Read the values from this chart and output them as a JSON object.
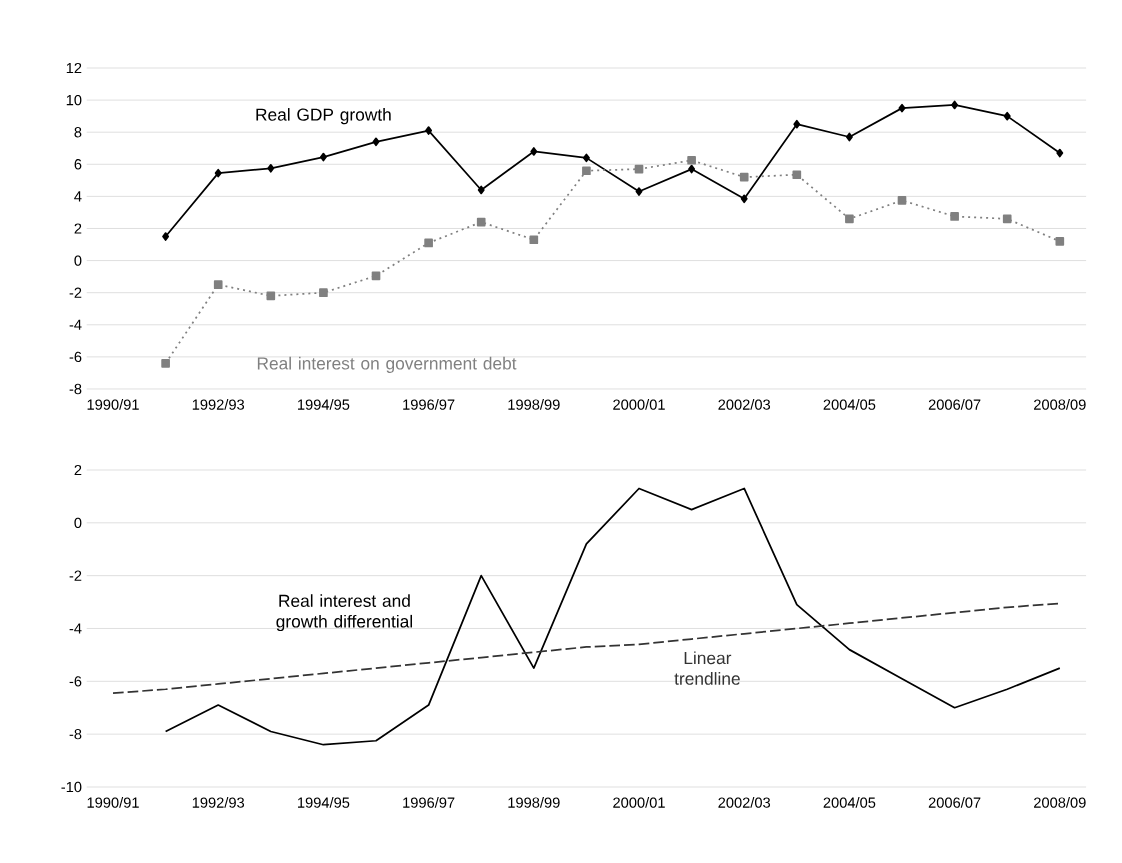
{
  "chart_data": [
    {
      "type": "line",
      "categories": [
        "1990/91",
        null,
        "1992/93",
        null,
        "1994/95",
        null,
        "1996/97",
        null,
        "1998/99",
        null,
        "2000/01",
        null,
        "2002/03",
        null,
        "2004/05",
        null,
        "2006/07",
        null,
        "2008/09"
      ],
      "ylim": [
        -8,
        12
      ],
      "yticks": [
        -8,
        -6,
        -4,
        -2,
        0,
        2,
        4,
        6,
        8,
        10,
        12
      ],
      "grid": "y",
      "legend": false,
      "series": [
        {
          "name": "Real GDP growth",
          "color": "#000000",
          "marker": "diamond",
          "line_style": "solid",
          "values": [
            null,
            1.5,
            5.45,
            5.75,
            6.45,
            7.4,
            8.1,
            4.4,
            6.8,
            6.4,
            4.3,
            5.7,
            3.85,
            8.5,
            7.7,
            9.5,
            9.7,
            9.0,
            6.7
          ]
        },
        {
          "name": "Real interest on government debt",
          "color": "#808080",
          "marker": "square",
          "line_style": "dotted",
          "values": [
            null,
            -6.4,
            -1.5,
            -2.2,
            -2.0,
            -0.95,
            1.1,
            2.4,
            1.3,
            5.6,
            5.7,
            6.25,
            5.2,
            5.35,
            2.6,
            3.75,
            2.75,
            2.6,
            1.2
          ]
        }
      ]
    },
    {
      "type": "line",
      "categories": [
        "1990/91",
        null,
        "1992/93",
        null,
        "1994/95",
        null,
        "1996/97",
        null,
        "1998/99",
        null,
        "2000/01",
        null,
        "2002/03",
        null,
        "2004/05",
        null,
        "2006/07",
        null,
        "2008/09"
      ],
      "ylim": [
        -10,
        2
      ],
      "yticks": [
        -10,
        -8,
        -6,
        -4,
        -2,
        0,
        2
      ],
      "grid": "y",
      "legend": false,
      "series": [
        {
          "name": "Real interest and growth differential",
          "color": "#000000",
          "marker": "none",
          "line_style": "solid",
          "values": [
            null,
            -7.9,
            -6.9,
            -7.9,
            -8.4,
            -8.25,
            -6.9,
            -2.0,
            -5.5,
            -0.8,
            1.3,
            0.5,
            1.3,
            -3.1,
            -4.8,
            -5.9,
            -7.0,
            -6.3,
            -5.5
          ]
        },
        {
          "name": "Linear trendline",
          "color": "#333333",
          "marker": "none",
          "line_style": "dashed",
          "values": [
            -6.45,
            -6.3,
            -6.1,
            -5.9,
            -5.7,
            -5.5,
            -5.3,
            -5.1,
            -4.9,
            -4.7,
            -4.6,
            -4.4,
            -4.2,
            -4.0,
            -3.8,
            -3.6,
            -3.4,
            -3.2,
            -3.05
          ]
        }
      ]
    }
  ]
}
